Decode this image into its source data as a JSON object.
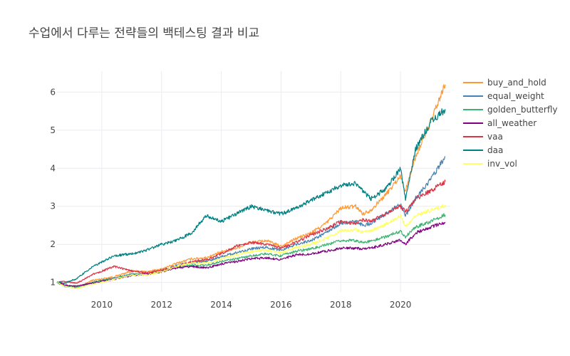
{
  "chart_data": {
    "type": "line",
    "title": "수업에서 다루는 전략들의 백테스팅 결과 비교",
    "xlabel": "",
    "ylabel": "",
    "xlim": [
      "2008-07-01",
      "2021-09-01"
    ],
    "ylim": [
      0.75,
      6.55
    ],
    "x_ticks": [
      "2010",
      "2012",
      "2014",
      "2016",
      "2018",
      "2020"
    ],
    "y_ticks": [
      "1",
      "2",
      "3",
      "4",
      "5",
      "6"
    ],
    "grid": true,
    "legend_position": "top-right",
    "x": [
      "2008-07",
      "2008-10",
      "2009-03",
      "2009-09",
      "2010-06",
      "2011-01",
      "2011-07",
      "2012-01",
      "2012-07",
      "2013-01",
      "2013-07",
      "2014-01",
      "2014-07",
      "2015-01",
      "2015-07",
      "2016-01",
      "2016-07",
      "2017-01",
      "2017-07",
      "2018-01",
      "2018-07",
      "2018-10",
      "2019-01",
      "2019-07",
      "2020-01",
      "2020-03",
      "2020-07",
      "2021-01",
      "2021-07"
    ],
    "series": [
      {
        "name": "buy_and_hold",
        "color": "#ff9933",
        "values": [
          1.02,
          0.92,
          0.86,
          1.05,
          1.15,
          1.3,
          1.28,
          1.35,
          1.5,
          1.62,
          1.65,
          1.8,
          1.9,
          2.05,
          2.1,
          1.95,
          2.15,
          2.3,
          2.55,
          2.95,
          3.0,
          2.8,
          2.9,
          3.3,
          3.8,
          3.4,
          4.3,
          5.2,
          6.2
        ]
      },
      {
        "name": "equal_weight",
        "color": "#4682b4",
        "values": [
          1.0,
          0.9,
          0.85,
          1.0,
          1.12,
          1.22,
          1.2,
          1.3,
          1.45,
          1.52,
          1.55,
          1.68,
          1.78,
          1.88,
          1.92,
          1.85,
          2.0,
          2.1,
          2.3,
          2.55,
          2.6,
          2.5,
          2.55,
          2.8,
          3.05,
          2.75,
          3.2,
          3.7,
          4.3
        ]
      },
      {
        "name": "golden_butterfly",
        "color": "#3cb371",
        "values": [
          1.0,
          0.92,
          0.88,
          1.0,
          1.1,
          1.2,
          1.22,
          1.3,
          1.4,
          1.45,
          1.45,
          1.55,
          1.62,
          1.7,
          1.75,
          1.7,
          1.82,
          1.88,
          1.98,
          2.1,
          2.1,
          2.05,
          2.08,
          2.2,
          2.35,
          2.2,
          2.45,
          2.6,
          2.78
        ]
      },
      {
        "name": "all_weather",
        "color": "#800080",
        "values": [
          1.0,
          0.93,
          0.9,
          0.98,
          1.08,
          1.18,
          1.22,
          1.28,
          1.38,
          1.42,
          1.38,
          1.48,
          1.55,
          1.62,
          1.65,
          1.6,
          1.72,
          1.75,
          1.82,
          1.9,
          1.9,
          1.88,
          1.9,
          2.0,
          2.12,
          2.0,
          2.3,
          2.45,
          2.58
        ]
      },
      {
        "name": "vaa",
        "color": "#dc3545",
        "values": [
          1.0,
          1.02,
          0.98,
          1.2,
          1.42,
          1.3,
          1.25,
          1.32,
          1.42,
          1.55,
          1.6,
          1.75,
          1.95,
          2.05,
          2.0,
          1.9,
          2.05,
          2.25,
          2.4,
          2.6,
          2.55,
          2.65,
          2.6,
          2.8,
          3.0,
          2.85,
          3.2,
          3.4,
          3.65
        ]
      },
      {
        "name": "daa",
        "color": "#008080",
        "values": [
          1.0,
          0.98,
          1.1,
          1.4,
          1.7,
          1.75,
          1.85,
          2.0,
          2.1,
          2.3,
          2.75,
          2.6,
          2.8,
          3.0,
          2.9,
          2.8,
          2.95,
          3.15,
          3.35,
          3.55,
          3.6,
          3.4,
          3.2,
          3.45,
          4.0,
          3.2,
          4.5,
          5.2,
          5.55
        ]
      },
      {
        "name": "inv_vol",
        "color": "#ffff66",
        "values": [
          1.0,
          0.9,
          0.84,
          0.95,
          1.08,
          1.2,
          1.2,
          1.28,
          1.42,
          1.52,
          1.5,
          1.62,
          1.72,
          1.82,
          1.85,
          1.78,
          1.92,
          2.0,
          2.15,
          2.35,
          2.38,
          2.32,
          2.35,
          2.52,
          2.75,
          2.45,
          2.75,
          2.9,
          3.02
        ]
      }
    ]
  }
}
